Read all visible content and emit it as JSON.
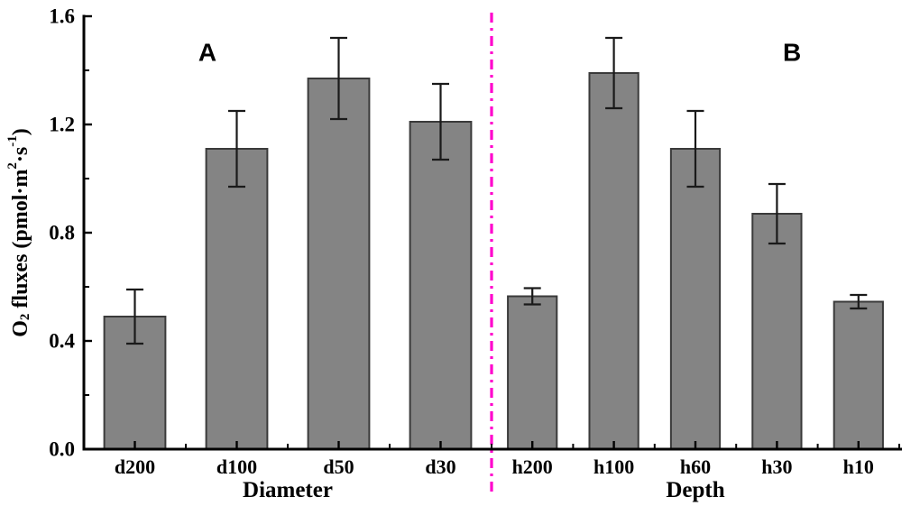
{
  "chart_data": {
    "type": "bar",
    "title": "",
    "ylabel": "O2 fluxes (pmol·m2·s-1)",
    "ylabel_segments": [
      {
        "t": "O"
      },
      {
        "t": "2",
        "s": "sub"
      },
      {
        "t": " fluxes (pmol·m"
      },
      {
        "t": "2",
        "s": "sup"
      },
      {
        "t": "·s"
      },
      {
        "t": "-1",
        "s": "sup"
      },
      {
        "t": ")"
      }
    ],
    "xlabel": "",
    "ylim": [
      0,
      1.6
    ],
    "y_major_ticks": [
      "0.0",
      "0.4",
      "0.8",
      "1.2",
      "1.6"
    ],
    "y_minor_ticks": [
      0.2,
      0.6,
      1.0,
      1.4
    ],
    "grid": false,
    "legend": false,
    "panel_label_y_value": 1.467,
    "groups": [
      {
        "panel_label": "A",
        "panel_label_x_frac": 0.303,
        "xlabel": "Diameter",
        "categories": [
          "d200",
          "d100",
          "d50",
          "d30"
        ],
        "values": [
          0.49,
          1.11,
          1.37,
          1.21
        ],
        "errors": [
          0.1,
          0.14,
          0.15,
          0.14
        ]
      },
      {
        "panel_label": "B",
        "panel_label_x_frac": 0.737,
        "xlabel": "Depth",
        "categories": [
          "h200",
          "h100",
          "h60",
          "h30",
          "h10"
        ],
        "values": [
          0.565,
          1.39,
          1.11,
          0.87,
          0.545
        ],
        "errors": [
          0.03,
          0.13,
          0.14,
          0.11,
          0.025
        ]
      }
    ],
    "style": {
      "bar_fill": "#848484",
      "bar_border": "#3a3a3a",
      "error_color": "#1a1a1a",
      "axis_color": "#000000",
      "text_color": "#000000",
      "separator_color": "#ff00cc",
      "background": "#ffffff"
    }
  }
}
